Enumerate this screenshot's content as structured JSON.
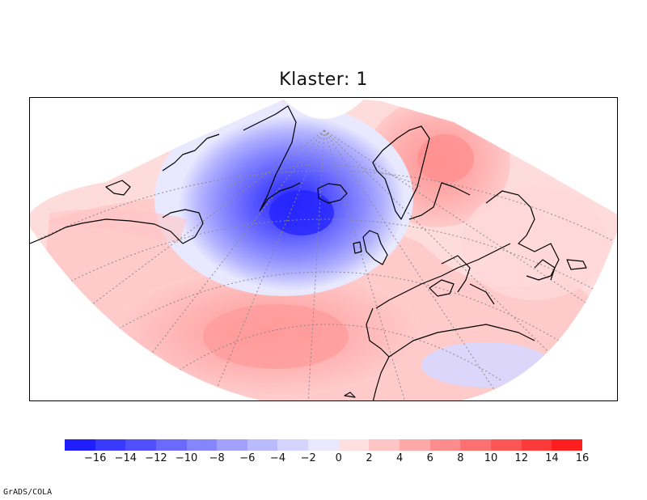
{
  "map": {
    "title": "Klaster: 1",
    "credit": "GrADS/COLA",
    "colorbar": {
      "colors": [
        "#1e1eff",
        "#3a3aff",
        "#5050ff",
        "#6a6aff",
        "#8585ff",
        "#a0a0ff",
        "#babaff",
        "#d4d4ff",
        "#e8e8ff",
        "#ffe0e0",
        "#ffc4c4",
        "#ffa8a8",
        "#ff8c8c",
        "#ff7070",
        "#ff5555",
        "#ff3a3a",
        "#ff1e1e"
      ],
      "labels": [
        "-16",
        "-14",
        "-12",
        "-10",
        "-8",
        "-6",
        "-4",
        "-2",
        "0",
        "2",
        "4",
        "6",
        "8",
        "10",
        "12",
        "14",
        "16"
      ]
    }
  }
}
